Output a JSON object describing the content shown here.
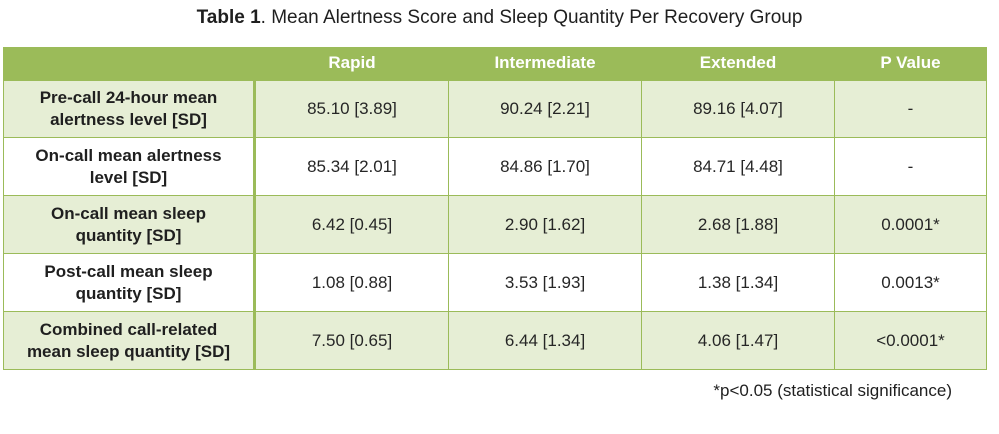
{
  "caption": {
    "lead": "Table 1",
    "text": ". Mean Alertness Score and Sleep Quantity Per Recovery Group"
  },
  "table": {
    "columns": [
      "",
      "Rapid",
      "Intermediate",
      "Extended",
      "P Value"
    ],
    "rows": [
      {
        "label_line1": "Pre-call 24-hour mean",
        "label_line2": "alertness level [SD]",
        "cells": [
          "85.10 [3.89]",
          "90.24 [2.21]",
          "89.16 [4.07]",
          "-"
        ]
      },
      {
        "label_line1": "On-call mean alertness",
        "label_line2": "level [SD]",
        "cells": [
          "85.34 [2.01]",
          "84.86 [1.70]",
          "84.71 [4.48]",
          "-"
        ]
      },
      {
        "label_line1": "On-call mean sleep",
        "label_line2": "quantity [SD]",
        "cells": [
          "6.42 [0.45]",
          "2.90 [1.62]",
          "2.68 [1.88]",
          "0.0001*"
        ]
      },
      {
        "label_line1": "Post-call mean sleep",
        "label_line2": "quantity [SD]",
        "cells": [
          "1.08 [0.88]",
          "3.53 [1.93]",
          "1.38 [1.34]",
          "0.0013*"
        ]
      },
      {
        "label_line1": "Combined call-related",
        "label_line2": "mean sleep quantity [SD]",
        "cells": [
          "7.50 [0.65]",
          "6.44 [1.34]",
          "4.06 [1.47]",
          "<0.0001*"
        ]
      }
    ]
  },
  "footnote": "*p<0.05 (statistical significance)",
  "colors": {
    "header_fill": "#9bbb59",
    "band_fill": "#e6eed5",
    "border": "#9bbb59"
  }
}
